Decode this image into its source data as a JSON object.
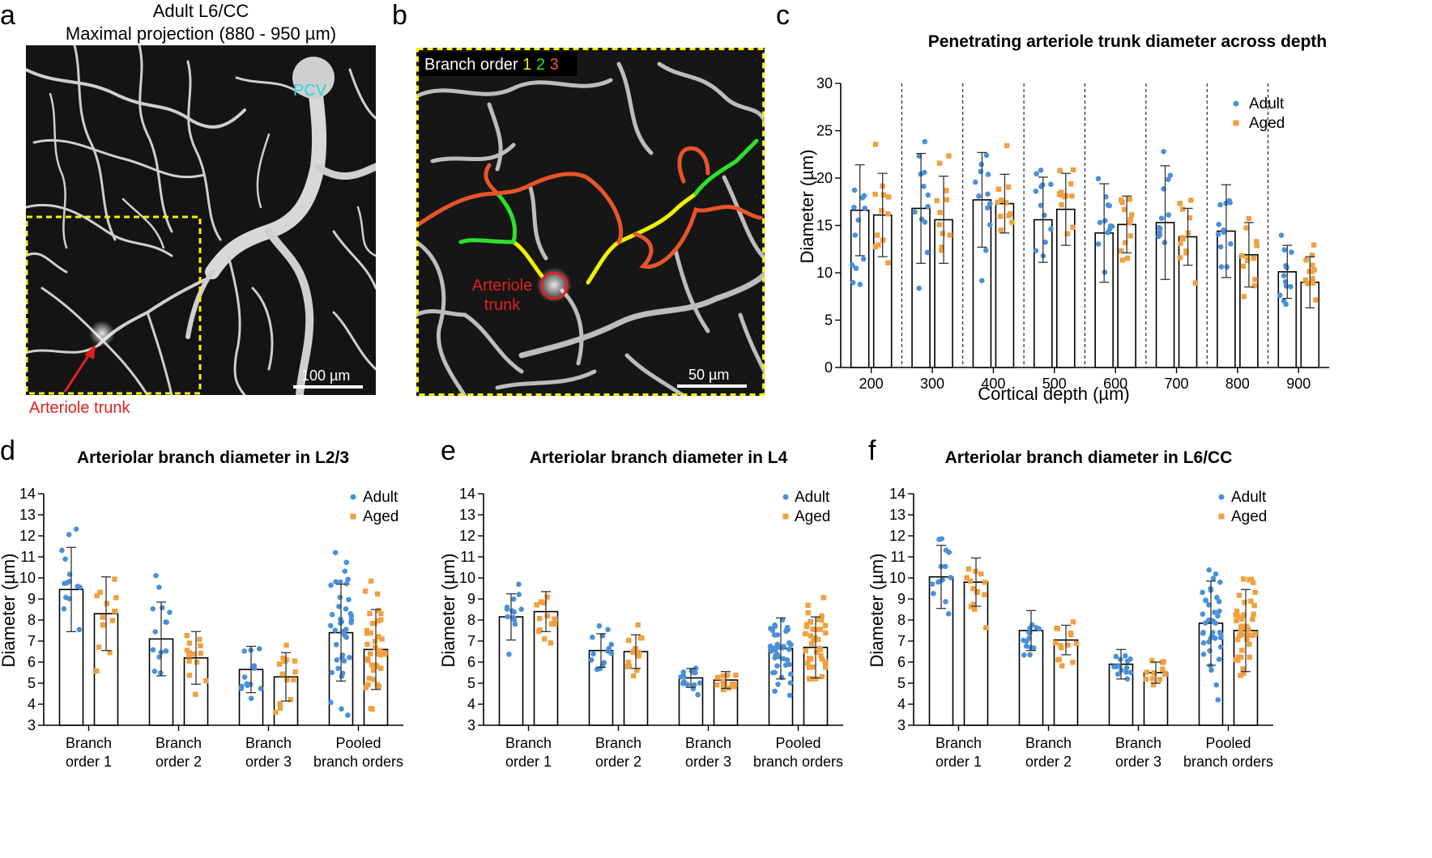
{
  "panels": {
    "a": {
      "letter": "a",
      "title_line1": "Adult L6/CC",
      "title_line2": "Maximal projection (880 - 950 µm)",
      "pcv_label": "PCV",
      "trunk_label": "Arteriole trunk",
      "scale_label": "100 µm"
    },
    "b": {
      "letter": "b",
      "legend_prefix": "Branch order",
      "order1": "1",
      "order2": "2",
      "order3": "3",
      "trunk_line1": "Arteriole",
      "trunk_line2": "trunk",
      "scale_label": "50 µm"
    },
    "c": {
      "letter": "c"
    },
    "d": {
      "letter": "d"
    },
    "e": {
      "letter": "e"
    },
    "f": {
      "letter": "f"
    }
  },
  "colors": {
    "adult": "#4a90d9",
    "aged": "#f0a040",
    "order1": "#f0f000",
    "order2": "#2ee02e",
    "order3": "#e8552a",
    "pcv": "#2ad4e0",
    "trunk": "#e02020",
    "dashed_box": "#f5f000"
  },
  "chart_data": [
    {
      "id": "c",
      "type": "bar",
      "title": "Penetrating arteriole trunk diameter across depth",
      "xlabel": "Cortical depth (µm)",
      "ylabel": "Diameter (µm)",
      "ylim": [
        0,
        30
      ],
      "yticks": [
        0,
        5,
        10,
        15,
        20,
        25,
        30
      ],
      "categories": [
        "200",
        "300",
        "400",
        "500",
        "600",
        "700",
        "800",
        "900"
      ],
      "legend": [
        "Adult",
        "Aged"
      ],
      "series": [
        {
          "name": "Adult",
          "values": [
            16.6,
            16.8,
            17.7,
            15.6,
            14.2,
            15.3,
            14.4,
            10.1
          ],
          "sd": [
            4.8,
            5.8,
            5.0,
            4.5,
            5.2,
            6.0,
            4.9,
            2.8
          ]
        },
        {
          "name": "Aged",
          "values": [
            16.1,
            15.6,
            17.3,
            16.7,
            15.1,
            13.8,
            11.9,
            9.0
          ],
          "sd": [
            4.4,
            4.6,
            3.1,
            3.8,
            3.0,
            3.0,
            3.4,
            2.7
          ]
        }
      ]
    },
    {
      "id": "d",
      "type": "bar",
      "title": "Arteriolar branch diameter in L2/3",
      "ylabel": "Diameter (µm)",
      "ylim": [
        3,
        14
      ],
      "yticks": [
        3,
        4,
        5,
        6,
        7,
        8,
        9,
        10,
        11,
        12,
        13,
        14
      ],
      "categories": [
        "Branch order 1",
        "Branch order 2",
        "Branch order 3",
        "Pooled branch orders"
      ],
      "category_lines": [
        [
          "Branch",
          "order 1"
        ],
        [
          "Branch",
          "order 2"
        ],
        [
          "Branch",
          "order 3"
        ],
        [
          "Pooled",
          "branch orders"
        ]
      ],
      "legend": [
        "Adult",
        "Aged"
      ],
      "series": [
        {
          "name": "Adult",
          "values": [
            9.45,
            7.1,
            5.65,
            7.4
          ],
          "sd": [
            2.0,
            1.75,
            1.1,
            2.3
          ]
        },
        {
          "name": "Aged",
          "values": [
            8.3,
            6.2,
            5.3,
            6.6
          ],
          "sd": [
            1.75,
            1.25,
            1.15,
            1.9
          ]
        }
      ]
    },
    {
      "id": "e",
      "type": "bar",
      "title": "Arteriolar branch diameter in L4",
      "ylabel": "Diameter (µm)",
      "ylim": [
        3,
        14
      ],
      "yticks": [
        3,
        4,
        5,
        6,
        7,
        8,
        9,
        10,
        11,
        12,
        13,
        14
      ],
      "categories": [
        "Branch order 1",
        "Branch order 2",
        "Branch order 3",
        "Pooled branch orders"
      ],
      "category_lines": [
        [
          "Branch",
          "order 1"
        ],
        [
          "Branch",
          "order 2"
        ],
        [
          "Branch",
          "order 3"
        ],
        [
          "Pooled",
          "branch orders"
        ]
      ],
      "legend": [
        "Adult",
        "Aged"
      ],
      "series": [
        {
          "name": "Adult",
          "values": [
            8.15,
            6.55,
            5.25,
            6.65
          ],
          "sd": [
            1.1,
            0.8,
            0.45,
            1.45
          ]
        },
        {
          "name": "Aged",
          "values": [
            8.4,
            6.5,
            5.15,
            6.7
          ],
          "sd": [
            0.95,
            0.8,
            0.4,
            1.45
          ]
        }
      ]
    },
    {
      "id": "f",
      "type": "bar",
      "title": "Arteriolar branch diameter in L6/CC",
      "ylabel": "Diameter (µm)",
      "ylim": [
        3,
        14
      ],
      "yticks": [
        3,
        4,
        5,
        6,
        7,
        8,
        9,
        10,
        11,
        12,
        13,
        14
      ],
      "categories": [
        "Branch order 1",
        "Branch order 2",
        "Branch order 3",
        "Pooled branch orders"
      ],
      "category_lines": [
        [
          "Branch",
          "order 1"
        ],
        [
          "Branch",
          "order 2"
        ],
        [
          "Branch",
          "order 3"
        ],
        [
          "Pooled",
          "branch orders"
        ]
      ],
      "legend": [
        "Adult",
        "Aged"
      ],
      "series": [
        {
          "name": "Adult",
          "values": [
            10.05,
            7.5,
            5.9,
            7.85
          ],
          "sd": [
            1.5,
            0.95,
            0.7,
            2.0
          ]
        },
        {
          "name": "Aged",
          "values": [
            9.8,
            7.05,
            5.5,
            7.5
          ],
          "sd": [
            1.15,
            0.7,
            0.5,
            1.95
          ]
        }
      ]
    }
  ]
}
